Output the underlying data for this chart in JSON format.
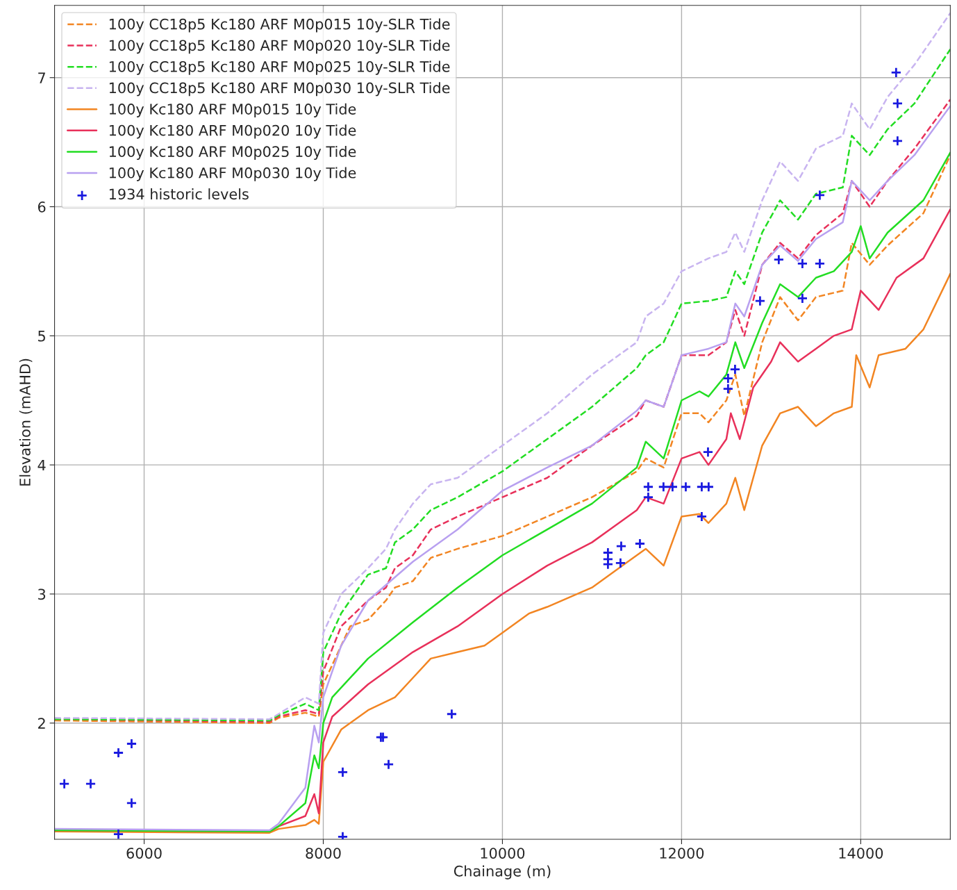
{
  "chart_data": {
    "type": "line",
    "xlabel": "Chainage (m)",
    "ylabel": "Elevation (mAHD)",
    "xlim": [
      5000,
      15000
    ],
    "ylim": [
      1.1,
      7.56
    ],
    "xticks": [
      6000,
      8000,
      10000,
      12000,
      14000
    ],
    "yticks": [
      2,
      3,
      4,
      5,
      6,
      7
    ],
    "grid": true,
    "legend": "top left",
    "series": [
      {
        "name": "100y CC18p5 Kc180 ARF M0p015 10y-SLR Tide",
        "color": "#f28522",
        "line_style": "dashed",
        "x": [
          5000,
          7400,
          7500,
          7800,
          7950,
          8000,
          8200,
          8300,
          8500,
          8700,
          8800,
          9000,
          9200,
          9500,
          10000,
          10500,
          11000,
          11500,
          11600,
          11800,
          12000,
          12200,
          12300,
          12500,
          12600,
          12700,
          12900,
          13100,
          13300,
          13500,
          13800,
          13900,
          14100,
          14300,
          14700,
          15000
        ],
        "values": [
          2.02,
          2.0,
          2.04,
          2.08,
          2.05,
          2.3,
          2.6,
          2.75,
          2.8,
          2.95,
          3.05,
          3.1,
          3.28,
          3.35,
          3.45,
          3.6,
          3.75,
          3.95,
          4.05,
          3.98,
          4.4,
          4.4,
          4.33,
          4.5,
          4.7,
          4.38,
          4.95,
          5.3,
          5.12,
          5.3,
          5.35,
          5.72,
          5.55,
          5.7,
          5.95,
          6.4
        ]
      },
      {
        "name": "100y CC18p5 Kc180 ARF M0p020 10y-SLR Tide",
        "color": "#e8305a",
        "line_style": "dashed",
        "x": [
          5000,
          7400,
          7500,
          7800,
          7950,
          8000,
          8200,
          8500,
          8700,
          8800,
          9000,
          9200,
          9500,
          10000,
          10500,
          11000,
          11500,
          11600,
          11800,
          12000,
          12300,
          12500,
          12600,
          12700,
          12900,
          13100,
          13300,
          13500,
          13800,
          13900,
          14100,
          14300,
          14600,
          15000
        ],
        "values": [
          2.03,
          2.01,
          2.05,
          2.1,
          2.07,
          2.4,
          2.75,
          2.95,
          3.05,
          3.2,
          3.3,
          3.5,
          3.6,
          3.75,
          3.9,
          4.15,
          4.38,
          4.5,
          4.45,
          4.85,
          4.85,
          4.95,
          5.2,
          5.0,
          5.55,
          5.72,
          5.6,
          5.78,
          5.95,
          6.2,
          6.0,
          6.2,
          6.45,
          6.83
        ]
      },
      {
        "name": "100y CC18p5 Kc180 ARF M0p025 10y-SLR Tide",
        "color": "#22dd22",
        "line_style": "dashed",
        "x": [
          5000,
          7400,
          7500,
          7800,
          7950,
          8000,
          8200,
          8500,
          8700,
          8800,
          9000,
          9200,
          9500,
          10000,
          10500,
          11000,
          11500,
          11600,
          11800,
          12000,
          12300,
          12500,
          12600,
          12700,
          12900,
          13100,
          13300,
          13500,
          13800,
          13900,
          14100,
          14300,
          14600,
          15000
        ],
        "values": [
          2.03,
          2.02,
          2.06,
          2.15,
          2.1,
          2.55,
          2.85,
          3.15,
          3.2,
          3.4,
          3.5,
          3.65,
          3.75,
          3.95,
          4.2,
          4.45,
          4.75,
          4.85,
          4.95,
          5.25,
          5.27,
          5.3,
          5.5,
          5.4,
          5.8,
          6.05,
          5.9,
          6.1,
          6.15,
          6.55,
          6.4,
          6.6,
          6.8,
          7.22
        ]
      },
      {
        "name": "100y CC18p5 Kc180 ARF M0p030 10y-SLR Tide",
        "color": "#c8b4f0",
        "line_style": "dashed",
        "x": [
          5000,
          7400,
          7500,
          7800,
          7950,
          8000,
          8200,
          8500,
          8700,
          8800,
          9000,
          9200,
          9500,
          10000,
          10500,
          11000,
          11500,
          11600,
          11800,
          12000,
          12300,
          12500,
          12600,
          12700,
          12900,
          13100,
          13300,
          13500,
          13800,
          13900,
          14100,
          14300,
          14600,
          15000
        ],
        "values": [
          2.04,
          2.03,
          2.07,
          2.2,
          2.15,
          2.7,
          3.0,
          3.2,
          3.35,
          3.5,
          3.7,
          3.85,
          3.9,
          4.15,
          4.4,
          4.7,
          4.95,
          5.15,
          5.25,
          5.5,
          5.6,
          5.65,
          5.8,
          5.65,
          6.05,
          6.35,
          6.2,
          6.45,
          6.55,
          6.8,
          6.6,
          6.85,
          7.1,
          7.5
        ]
      },
      {
        "name": "100y Kc180 ARF M0p015 10y Tide",
        "color": "#f28522",
        "line_style": "solid",
        "x": [
          5000,
          7400,
          7500,
          7800,
          7900,
          7950,
          8000,
          8200,
          8500,
          8800,
          9000,
          9200,
          9500,
          9800,
          10000,
          10300,
          10500,
          11000,
          11300,
          11600,
          11800,
          12000,
          12200,
          12300,
          12500,
          12600,
          12700,
          12900,
          13100,
          13300,
          13500,
          13700,
          13900,
          13950,
          14100,
          14200,
          14500,
          14700,
          15000
        ],
        "values": [
          1.16,
          1.15,
          1.18,
          1.21,
          1.25,
          1.22,
          1.7,
          1.95,
          2.1,
          2.2,
          2.35,
          2.5,
          2.55,
          2.6,
          2.7,
          2.85,
          2.9,
          3.05,
          3.2,
          3.35,
          3.22,
          3.6,
          3.62,
          3.55,
          3.7,
          3.9,
          3.65,
          4.15,
          4.4,
          4.45,
          4.3,
          4.4,
          4.45,
          4.85,
          4.6,
          4.85,
          4.9,
          5.05,
          5.48
        ]
      },
      {
        "name": "100y Kc180 ARF M0p020 10y Tide",
        "color": "#e8305a",
        "line_style": "solid",
        "x": [
          5000,
          7400,
          7500,
          7800,
          7900,
          7950,
          8000,
          8100,
          8500,
          9000,
          9500,
          10000,
          10500,
          11000,
          11500,
          11600,
          11800,
          12000,
          12200,
          12300,
          12500,
          12550,
          12650,
          12800,
          13000,
          13100,
          13300,
          13500,
          13700,
          13900,
          14000,
          14200,
          14400,
          14700,
          15000
        ],
        "values": [
          1.17,
          1.16,
          1.2,
          1.28,
          1.45,
          1.3,
          1.85,
          2.05,
          2.3,
          2.55,
          2.75,
          3.0,
          3.22,
          3.4,
          3.65,
          3.75,
          3.7,
          4.05,
          4.1,
          4.0,
          4.2,
          4.4,
          4.2,
          4.6,
          4.8,
          4.95,
          4.8,
          4.9,
          5.0,
          5.05,
          5.35,
          5.2,
          5.45,
          5.6,
          5.98
        ]
      },
      {
        "name": "100y Kc180 ARF M0p025 10y Tide",
        "color": "#22dd22",
        "line_style": "solid",
        "x": [
          5000,
          7400,
          7500,
          7800,
          7900,
          7950,
          8000,
          8100,
          8500,
          9000,
          9500,
          10000,
          10500,
          11000,
          11500,
          11600,
          11800,
          12000,
          12200,
          12300,
          12500,
          12600,
          12700,
          12900,
          13100,
          13300,
          13500,
          13700,
          13900,
          14000,
          14100,
          14300,
          14700,
          15000
        ],
        "values": [
          1.17,
          1.16,
          1.2,
          1.38,
          1.75,
          1.65,
          2.0,
          2.2,
          2.5,
          2.78,
          3.05,
          3.3,
          3.5,
          3.7,
          3.98,
          4.18,
          4.05,
          4.5,
          4.57,
          4.53,
          4.7,
          4.95,
          4.75,
          5.1,
          5.4,
          5.3,
          5.45,
          5.5,
          5.65,
          5.85,
          5.6,
          5.8,
          6.05,
          6.42
        ]
      },
      {
        "name": "100y Kc180 ARF M0p030 10y Tide",
        "color": "#b8a0f0",
        "line_style": "solid",
        "x": [
          5000,
          7400,
          7500,
          7800,
          7900,
          7950,
          8000,
          8200,
          8500,
          9000,
          9500,
          10000,
          10500,
          11000,
          11500,
          11600,
          11800,
          12000,
          12300,
          12500,
          12600,
          12700,
          12900,
          13100,
          13300,
          13500,
          13800,
          13900,
          14100,
          14300,
          14600,
          15000
        ],
        "values": [
          1.18,
          1.17,
          1.22,
          1.5,
          1.98,
          1.85,
          2.2,
          2.6,
          2.95,
          3.25,
          3.5,
          3.8,
          3.98,
          4.15,
          4.42,
          4.5,
          4.45,
          4.85,
          4.9,
          4.95,
          5.25,
          5.15,
          5.55,
          5.7,
          5.58,
          5.75,
          5.88,
          6.2,
          6.05,
          6.2,
          6.4,
          6.78
        ]
      },
      {
        "name": "1934 historic levels",
        "type": "scatter",
        "marker": "cross",
        "color": "#1a1adf",
        "x": [
          5109,
          5403,
          5713,
          5860,
          5860,
          5713,
          8217,
          8217,
          8643,
          8667,
          8729,
          9434,
          11178,
          11178,
          11178,
          11326,
          11318,
          11535,
          11628,
          11628,
          11798,
          11899,
          12047,
          12225,
          12302,
          12225,
          12295,
          12519,
          12519,
          12597,
          12876,
          13085,
          13349,
          13349,
          13543,
          13543,
          14395,
          14411,
          14411
        ],
        "values": [
          1.53,
          1.53,
          1.77,
          1.84,
          1.38,
          1.14,
          1.62,
          1.12,
          1.89,
          1.89,
          1.68,
          2.07,
          3.32,
          3.27,
          3.23,
          3.37,
          3.24,
          3.39,
          3.83,
          3.75,
          3.83,
          3.83,
          3.83,
          3.83,
          3.83,
          3.6,
          4.1,
          4.67,
          4.59,
          4.74,
          5.27,
          5.59,
          5.56,
          5.29,
          5.56,
          6.09,
          7.04,
          6.8,
          6.51
        ]
      }
    ]
  }
}
